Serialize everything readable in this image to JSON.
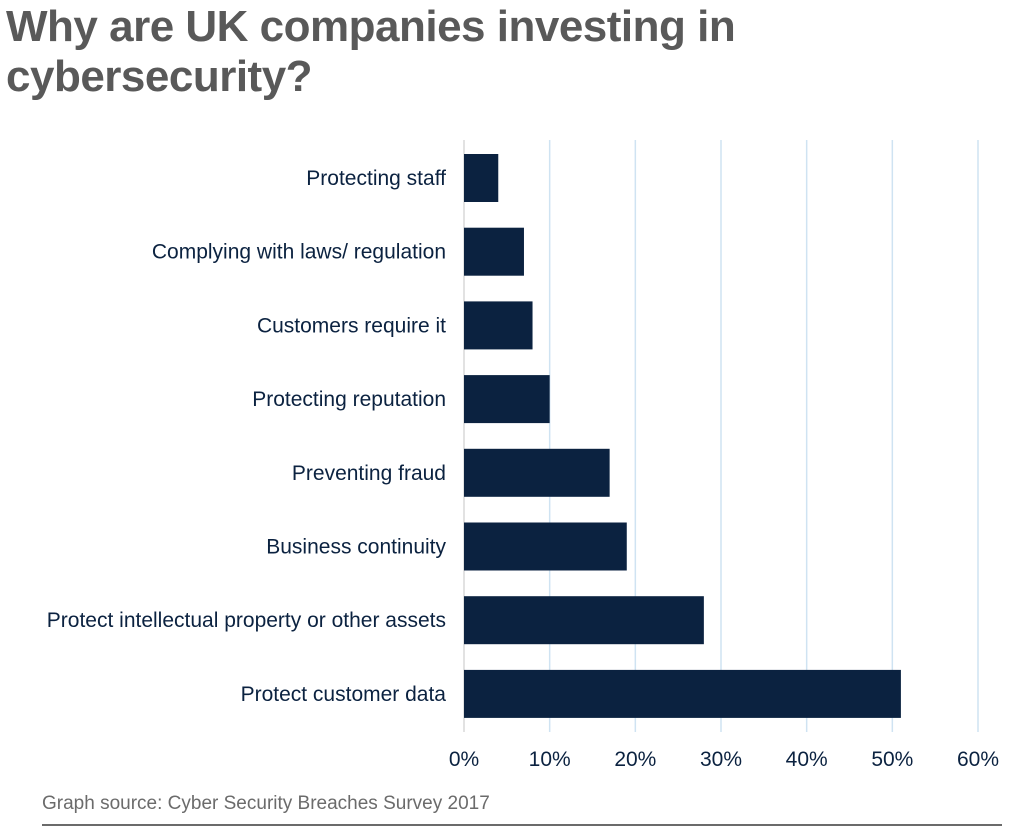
{
  "title": "Why are UK companies investing in cybersecurity?",
  "source": "Graph source: Cyber Security Breaches Survey 2017",
  "chart_data": {
    "type": "bar",
    "orientation": "horizontal",
    "title": "Why are UK companies investing in cybersecurity?",
    "xlabel": "",
    "ylabel": "",
    "categories": [
      "Protecting staff",
      "Complying with laws/ regulation",
      "Customers require it",
      "Protecting reputation",
      "Preventing fraud",
      "Business continuity",
      "Protect intellectual property or other assets",
      "Protect customer data"
    ],
    "values": [
      4,
      7,
      8,
      10,
      17,
      19,
      28,
      51
    ],
    "value_unit": "%",
    "xlim": [
      0,
      60
    ],
    "xticks": [
      "0%",
      "10%",
      "20%",
      "30%",
      "40%",
      "50%",
      "60%"
    ],
    "grid": "vertical",
    "legend": "none",
    "bar_color": "#0b2240",
    "grid_color": "#cfe3f2"
  }
}
